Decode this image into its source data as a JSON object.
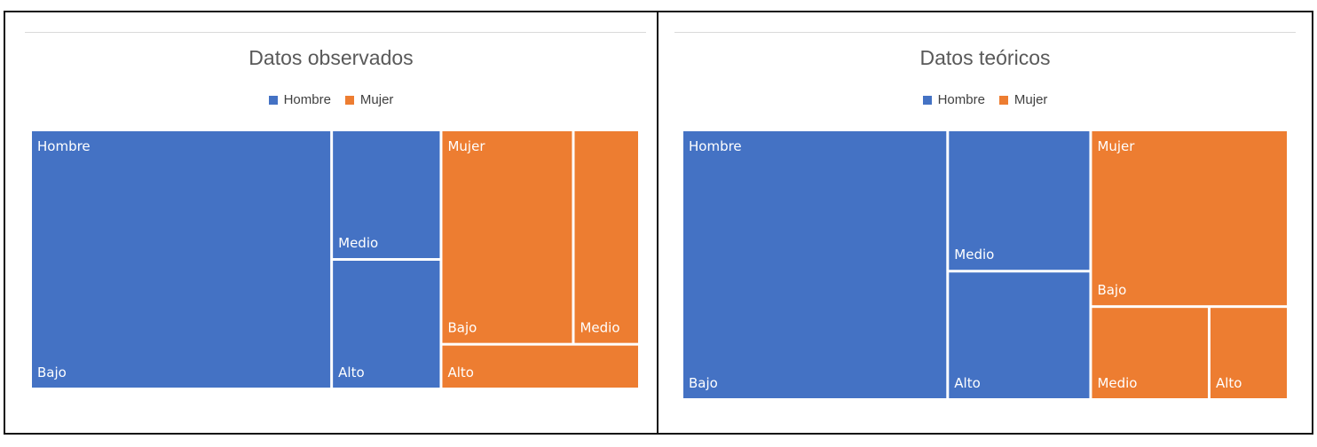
{
  "colors": {
    "hombre": "#4472C4",
    "mujer": "#ED7D31",
    "background": "#FFFFFF",
    "title": "#595959",
    "frame": "#111111"
  },
  "chart_data": [
    {
      "type": "treemap",
      "title": "Datos observados",
      "legend": {
        "placement": "top",
        "entries": [
          "Hombre",
          "Mujer"
        ]
      },
      "groups": [
        {
          "name": "Hombre",
          "color": "#4472C4",
          "items": [
            {
              "label": "Bajo",
              "value": 44
            },
            {
              "label": "Medio",
              "value": 8
            },
            {
              "label": "Alto",
              "value": 8
            }
          ]
        },
        {
          "name": "Mujer",
          "color": "#ED7D31",
          "items": [
            {
              "label": "Bajo",
              "value": 16
            },
            {
              "label": "Medio",
              "value": 8
            },
            {
              "label": "Alto",
              "value": 5
            }
          ]
        }
      ]
    },
    {
      "type": "treemap",
      "title": "Datos teóricos",
      "legend": {
        "placement": "top",
        "entries": [
          "Hombre",
          "Mujer"
        ]
      },
      "groups": [
        {
          "name": "Hombre",
          "color": "#4472C4",
          "items": [
            {
              "label": "Bajo",
              "value": 39
            },
            {
              "label": "Medio",
              "value": 11
            },
            {
              "label": "Alto",
              "value": 10
            }
          ]
        },
        {
          "name": "Mujer",
          "color": "#ED7D31",
          "items": [
            {
              "label": "Bajo",
              "value": 19
            },
            {
              "label": "Medio",
              "value": 6
            },
            {
              "label": "Alto",
              "value": 4
            }
          ]
        }
      ]
    }
  ]
}
